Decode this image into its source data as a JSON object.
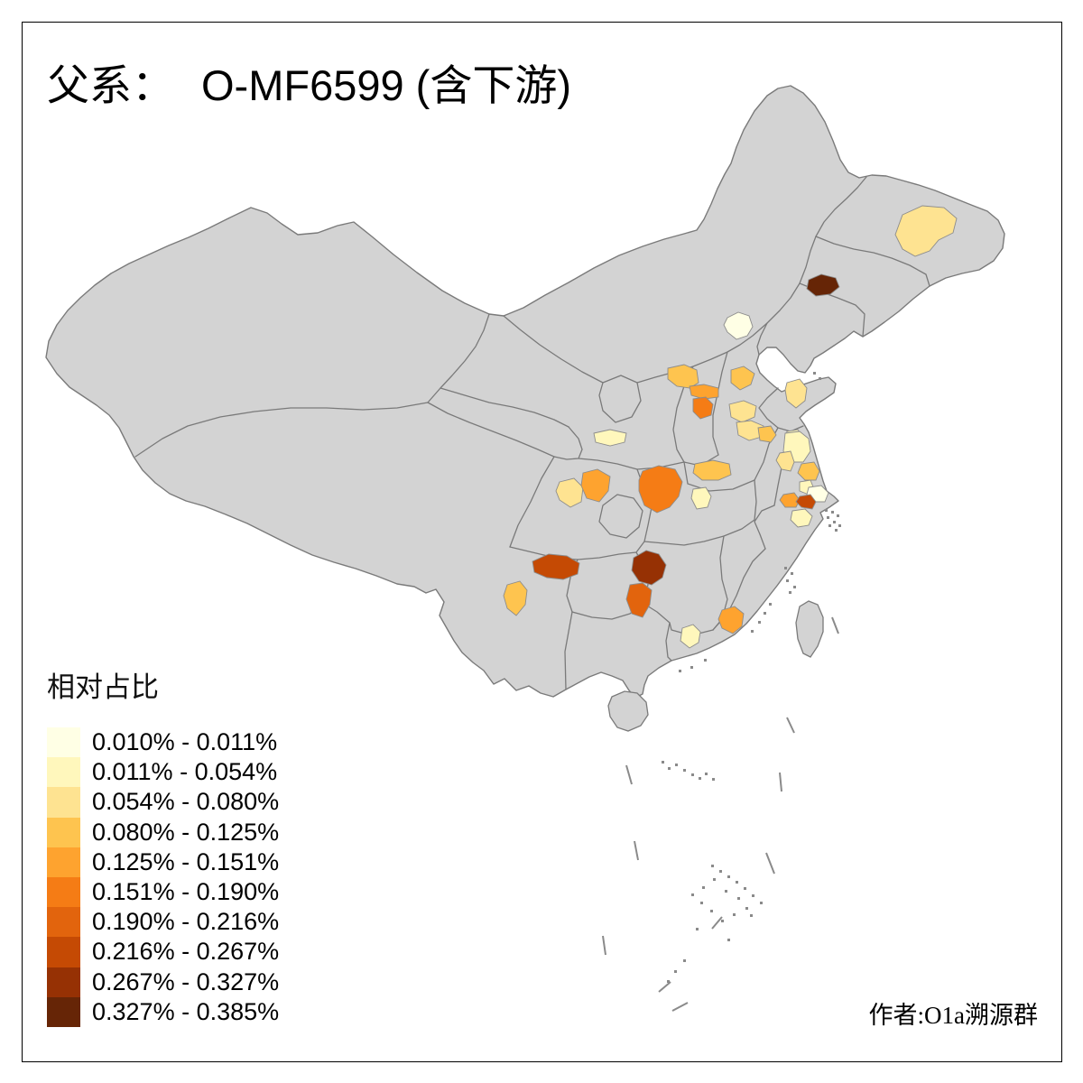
{
  "window": {
    "background": "#FFFFFF",
    "frame_color": "#000000"
  },
  "title": {
    "prefix": "父系：",
    "main": "O-MF6599 (含下游)"
  },
  "legend": {
    "title": "相对占比"
  },
  "attribution": "作者:O1a溯源群",
  "map": {
    "land_color": "#D3D3D3",
    "border_color": "#7A7A7A",
    "sea_color": "#FFFFFF",
    "speck_color": "#8A8A8A",
    "region_stroke": "#8C8C8C"
  },
  "chart_data": {
    "type": "heatmap",
    "subtype": "choropleth map of China prefectures",
    "title": "父系： O-MF6599 (含下游)",
    "legend_title": "相对占比",
    "classes": [
      {
        "range": "0.010% - 0.011%",
        "color": "#FFFFE5"
      },
      {
        "range": "0.011% - 0.054%",
        "color": "#FFF7BC"
      },
      {
        "range": "0.054% - 0.080%",
        "color": "#FEE391"
      },
      {
        "range": "0.080% - 0.125%",
        "color": "#FEC44F"
      },
      {
        "range": "0.125% - 0.151%",
        "color": "#FEA32F"
      },
      {
        "range": "0.151% - 0.190%",
        "color": "#F57C15"
      },
      {
        "range": "0.190% - 0.216%",
        "color": "#E2640D"
      },
      {
        "range": "0.216% - 0.267%",
        "color": "#C54A04"
      },
      {
        "range": "0.267% - 0.327%",
        "color": "#963104"
      },
      {
        "range": "0.327% - 0.385%",
        "color": "#662506"
      }
    ],
    "regions": [
      {
        "id": "suihua",
        "area": "黑龙江中部(绥化一带)",
        "class": 3
      },
      {
        "id": "siping",
        "area": "吉林西南部(四平—辽源一带)",
        "class": 10
      },
      {
        "id": "beijing",
        "area": "北京",
        "class": 1
      },
      {
        "id": "luliang",
        "area": "山西吕梁一带",
        "class": 4
      },
      {
        "id": "taiyuan",
        "area": "山西太原一带",
        "class": 5
      },
      {
        "id": "jinzhong",
        "area": "山西晋中—长治一带",
        "class": 6
      },
      {
        "id": "shijiazhuang",
        "area": "河北石家庄一带",
        "class": 4
      },
      {
        "id": "qingdao",
        "area": "山东青岛—潍坊一带",
        "class": 3
      },
      {
        "id": "jinan",
        "area": "山东济南—聊城一带",
        "class": 3
      },
      {
        "id": "jining",
        "area": "山东济宁一带",
        "class": 3
      },
      {
        "id": "linyi",
        "area": "山东临沂一带",
        "class": 2
      },
      {
        "id": "shangqiu",
        "area": "河南商丘一带",
        "class": 4
      },
      {
        "id": "tianshui",
        "area": "甘肃天水一带",
        "class": 2
      },
      {
        "id": "chengdu",
        "area": "四川成都—绵阳一带",
        "class": 3
      },
      {
        "id": "nanchong",
        "area": "四川南充—广安一带",
        "class": 5
      },
      {
        "id": "xiangyang",
        "area": "湖北襄阳—荆门一带",
        "class": 6
      },
      {
        "id": "zhumadian",
        "area": "河南驻马店—信阳一带",
        "class": 4
      },
      {
        "id": "suizhou",
        "area": "湖北随州—孝感一带",
        "class": 2
      },
      {
        "id": "bijie",
        "area": "云贵交界(昭通—毕节一带)",
        "class": 8
      },
      {
        "id": "qujing",
        "area": "云南曲靖—昆明一带",
        "class": 4
      },
      {
        "id": "xiangxi",
        "area": "湘西(张家界—湘西州一带)",
        "class": 9
      },
      {
        "id": "huaihua",
        "area": "湖南怀化一带",
        "class": 7
      },
      {
        "id": "hezhou",
        "area": "桂东(贺州—梧州一带)",
        "class": 2
      },
      {
        "id": "meizhou",
        "area": "广东梅州—河源一带",
        "class": 5
      },
      {
        "id": "suqian",
        "area": "苏北(宿迁—淮安一带)",
        "class": 2
      },
      {
        "id": "chuzhou",
        "area": "皖东(滁州一带)",
        "class": 3
      },
      {
        "id": "yancheng",
        "area": "江苏盐城—泰州一带",
        "class": 4
      },
      {
        "id": "nantong",
        "area": "江苏南通一带",
        "class": 2
      },
      {
        "id": "shanghai",
        "area": "上海—苏州东部一带",
        "class": 1
      },
      {
        "id": "nanjing",
        "area": "江苏南京—镇江一带",
        "class": 5
      },
      {
        "id": "wuxi",
        "area": "苏锡常一带",
        "class": 8
      },
      {
        "id": "huzhou",
        "area": "浙北(湖州—嘉兴一带)",
        "class": 2
      }
    ]
  }
}
